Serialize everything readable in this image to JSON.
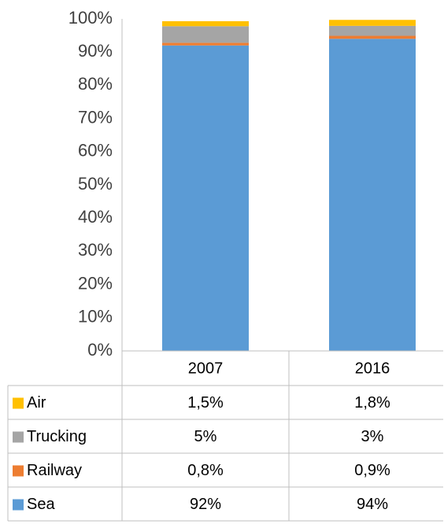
{
  "chart_data": {
    "type": "stacked_bar",
    "categories": [
      "2007",
      "2016"
    ],
    "series": [
      {
        "name": "Sea",
        "color": "#5b9bd5",
        "values": [
          92,
          94
        ],
        "value_labels": [
          "92%",
          "94%"
        ]
      },
      {
        "name": "Railway",
        "color": "#ed7d31",
        "values": [
          0.8,
          0.9
        ],
        "value_labels": [
          "0,8%",
          "0,9%"
        ]
      },
      {
        "name": "Trucking",
        "color": "#a5a5a5",
        "values": [
          5,
          3
        ],
        "value_labels": [
          "5%",
          "3%"
        ]
      },
      {
        "name": "Air",
        "color": "#ffc000",
        "values": [
          1.5,
          1.8
        ],
        "value_labels": [
          "1,5%",
          "1,8%"
        ]
      }
    ],
    "ylim": [
      0,
      100
    ],
    "yticks": [
      {
        "value": 0,
        "label": "0%"
      },
      {
        "value": 10,
        "label": "10%"
      },
      {
        "value": 20,
        "label": "20%"
      },
      {
        "value": 30,
        "label": "30%"
      },
      {
        "value": 40,
        "label": "40%"
      },
      {
        "value": 50,
        "label": "50%"
      },
      {
        "value": 60,
        "label": "60%"
      },
      {
        "value": 70,
        "label": "70%"
      },
      {
        "value": 80,
        "label": "80%"
      },
      {
        "value": 90,
        "label": "90%"
      },
      {
        "value": 100,
        "label": "100%"
      }
    ],
    "grid": false
  }
}
